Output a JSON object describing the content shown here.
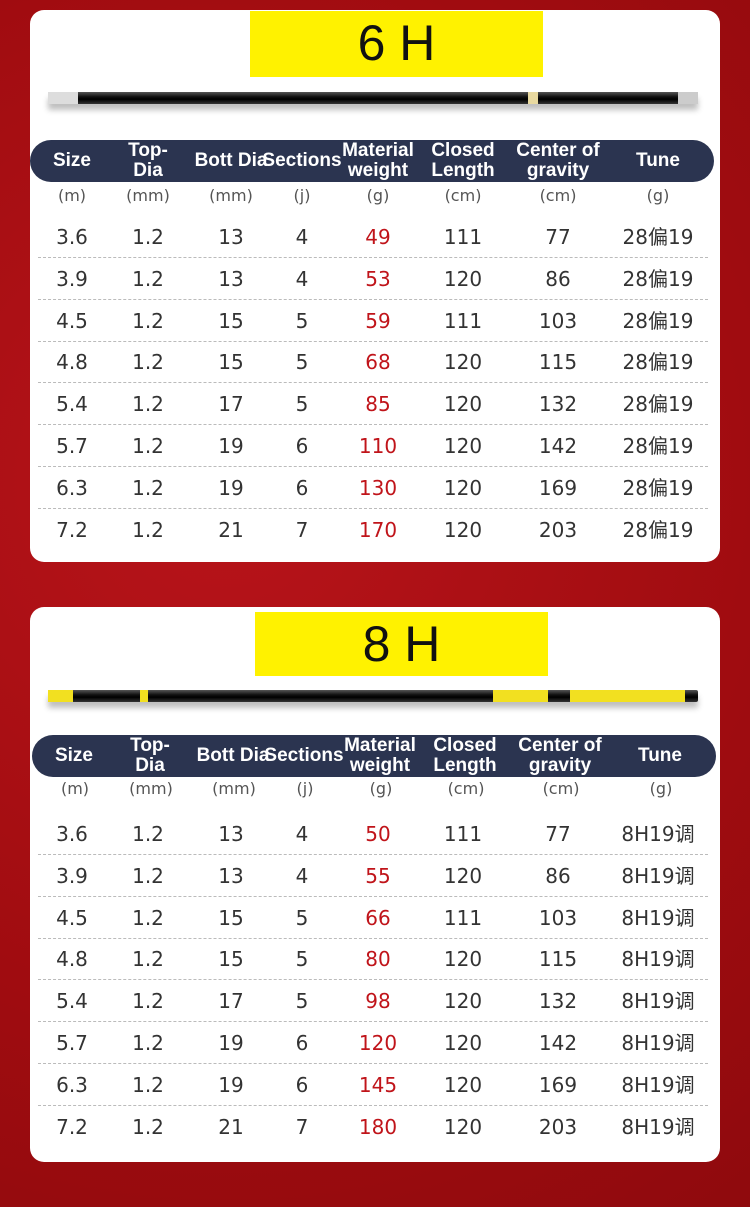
{
  "headers": [
    "Size",
    "Top-\nDia",
    "Bott Dia",
    "Sections",
    "Material\nweight",
    "Closed\nLength",
    "Center of\ngravity",
    "Tune"
  ],
  "units": [
    "(m)",
    "(mm)",
    "(mm)",
    "(j)",
    "(g)",
    "(cm)",
    "(cm)",
    "(g)"
  ],
  "tables": [
    {
      "title": "6 H",
      "rows": [
        [
          "3.6",
          "1.2",
          "13",
          "4",
          "49",
          "111",
          "77",
          "28偏19"
        ],
        [
          "3.9",
          "1.2",
          "13",
          "4",
          "53",
          "120",
          "86",
          "28偏19"
        ],
        [
          "4.5",
          "1.2",
          "15",
          "5",
          "59",
          "111",
          "103",
          "28偏19"
        ],
        [
          "4.8",
          "1.2",
          "15",
          "5",
          "68",
          "120",
          "115",
          "28偏19"
        ],
        [
          "5.4",
          "1.2",
          "17",
          "5",
          "85",
          "120",
          "132",
          "28偏19"
        ],
        [
          "5.7",
          "1.2",
          "19",
          "6",
          "110",
          "120",
          "142",
          "28偏19"
        ],
        [
          "6.3",
          "1.2",
          "19",
          "6",
          "130",
          "120",
          "169",
          "28偏19"
        ],
        [
          "7.2",
          "1.2",
          "21",
          "7",
          "170",
          "120",
          "203",
          "28偏19"
        ]
      ]
    },
    {
      "title": "8 H",
      "rows": [
        [
          "3.6",
          "1.2",
          "13",
          "4",
          "50",
          "111",
          "77",
          "8H19调"
        ],
        [
          "3.9",
          "1.2",
          "13",
          "4",
          "55",
          "120",
          "86",
          "8H19调"
        ],
        [
          "4.5",
          "1.2",
          "15",
          "5",
          "66",
          "111",
          "103",
          "8H19调"
        ],
        [
          "4.8",
          "1.2",
          "15",
          "5",
          "80",
          "120",
          "115",
          "8H19调"
        ],
        [
          "5.4",
          "1.2",
          "17",
          "5",
          "98",
          "120",
          "132",
          "8H19调"
        ],
        [
          "5.7",
          "1.2",
          "19",
          "6",
          "120",
          "120",
          "142",
          "8H19调"
        ],
        [
          "6.3",
          "1.2",
          "19",
          "6",
          "145",
          "120",
          "169",
          "8H19调"
        ],
        [
          "7.2",
          "1.2",
          "21",
          "7",
          "180",
          "120",
          "203",
          "8H19调"
        ]
      ]
    }
  ],
  "colors": {
    "background": "#a90d12",
    "header": "#2b3450",
    "title_bg": "#fff200",
    "weight": "#c0141a"
  }
}
